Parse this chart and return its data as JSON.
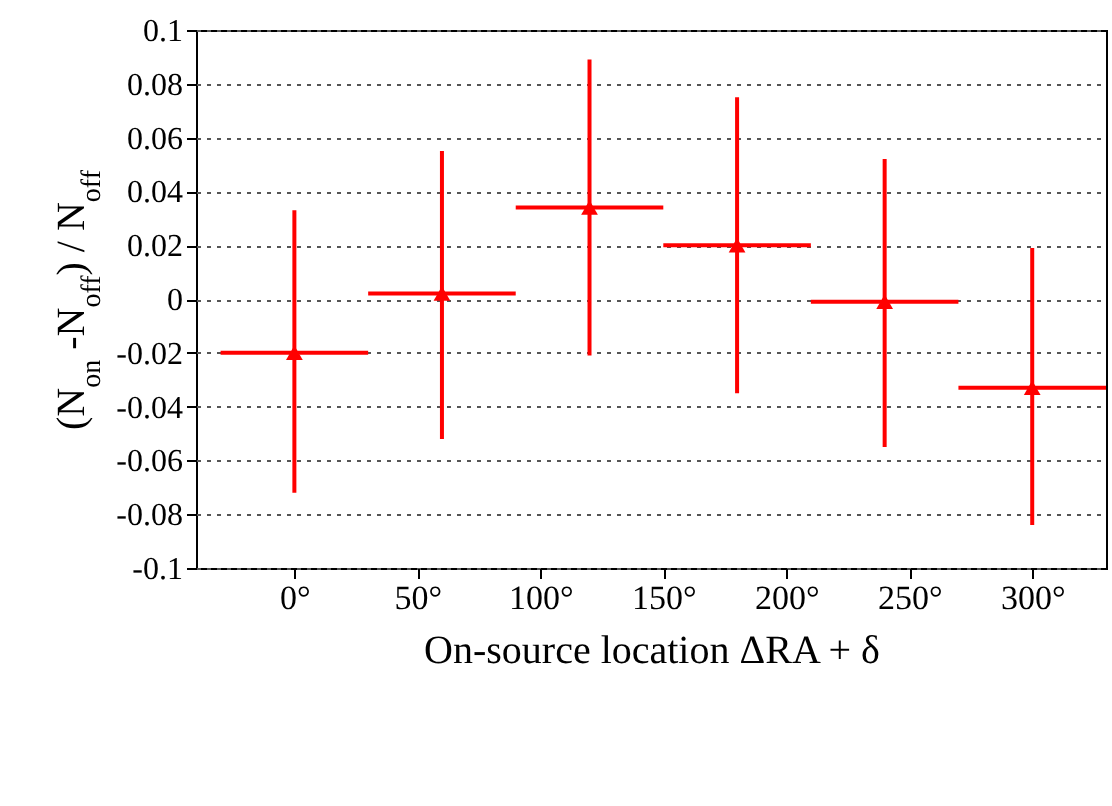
{
  "chart_data": {
    "type": "scatter",
    "xlabel": "On-source location ΔRA + δ",
    "ylabel": "(N$_{on}$ -N$_{off}$) / N$_{off}$",
    "x": [
      0,
      60,
      120,
      180,
      240,
      300
    ],
    "series": [
      {
        "color": "#ff0000",
        "values": [
          -0.02,
          0.002,
          0.034,
          0.02,
          -0.001,
          -0.033
        ],
        "errors": [
          [
            -0.072,
            0.033
          ],
          [
            -0.052,
            0.055
          ],
          [
            -0.021,
            0.089
          ],
          [
            -0.035,
            0.075
          ],
          [
            -0.055,
            0.052
          ],
          [
            -0.084,
            0.019
          ]
        ],
        "xerrors": [
          30,
          30,
          30,
          30,
          30,
          30
        ]
      }
    ],
    "xlim": [
      -40,
      330
    ],
    "xticks": [
      {
        "value": 0,
        "label": "0°"
      },
      {
        "value": 50,
        "label": "50°"
      },
      {
        "value": 100,
        "label": "100°"
      },
      {
        "value": 150,
        "label": "150°"
      },
      {
        "value": 200,
        "label": "200°"
      },
      {
        "value": 250,
        "label": "250°"
      },
      {
        "value": 300,
        "label": "300°"
      }
    ],
    "ylim": [
      -0.1,
      0.1
    ],
    "yticks": [
      -0.1,
      -0.08,
      -0.06,
      -0.04,
      -0.02,
      0,
      0.02,
      0.04,
      0.06,
      0.08,
      0.1
    ],
    "grid": "y",
    "marker": "triangle"
  }
}
